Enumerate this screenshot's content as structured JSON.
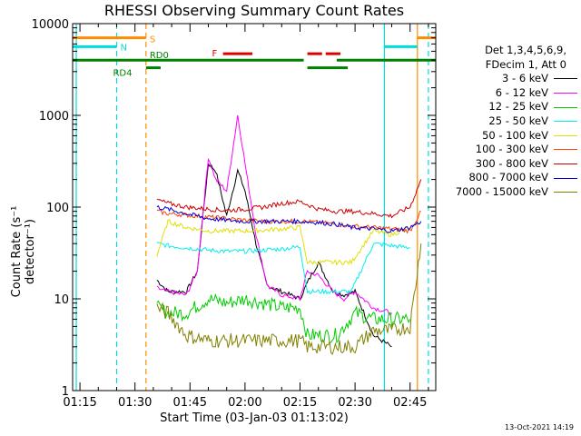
{
  "chart_data": {
    "type": "line",
    "title": "RHESSI Observing Summary Count Rates",
    "xlabel": "Start Time (03-Jan-03 01:13:02)",
    "ylabel": "Count Rate (s⁻¹ detector⁻¹)",
    "yscale": "log",
    "ylim": [
      1,
      10000
    ],
    "xlim": [
      "01:13",
      "02:52"
    ],
    "x_ticks": [
      "01:15",
      "01:30",
      "01:45",
      "02:00",
      "02:15",
      "02:30",
      "02:45"
    ],
    "y_ticks": [
      "1",
      "10",
      "100",
      "1000",
      "10000"
    ],
    "legend_title": [
      "Det 1,3,4,5,6,9,",
      "FDecim 1, Att 0"
    ],
    "timestamp": "13-Oct-2021 14:19",
    "series": [
      {
        "name": "3 - 6 keV",
        "color": "#000000",
        "x": [
          "01:36",
          "01:39",
          "01:44",
          "01:47",
          "01:50",
          "01:52",
          "01:55",
          "01:58",
          "02:00",
          "02:03",
          "02:06",
          "02:10",
          "02:15",
          "02:17",
          "02:20",
          "02:24",
          "02:27",
          "02:30",
          "02:35",
          "02:40"
        ],
        "y": [
          16,
          12,
          12,
          20,
          300,
          250,
          80,
          250,
          150,
          40,
          14,
          12,
          10,
          15,
          25,
          12,
          11,
          12,
          4,
          3
        ]
      },
      {
        "name": "6 - 12 keV",
        "color": "#ff00ff",
        "x": [
          "01:36",
          "01:39",
          "01:44",
          "01:47",
          "01:50",
          "01:52",
          "01:55",
          "01:58",
          "02:00",
          "02:03",
          "02:06",
          "02:10",
          "02:15",
          "02:17",
          "02:20",
          "02:24",
          "02:27",
          "02:30",
          "02:35",
          "02:40"
        ],
        "y": [
          13,
          12,
          11,
          20,
          350,
          200,
          150,
          1000,
          300,
          50,
          14,
          11,
          10,
          20,
          18,
          12,
          10,
          12,
          8,
          7
        ]
      },
      {
        "name": "12 - 25 keV",
        "color": "#00cc00",
        "x": [
          "01:36",
          "01:39",
          "01:44",
          "01:50",
          "01:55",
          "02:00",
          "02:05",
          "02:10",
          "02:15",
          "02:17",
          "02:20",
          "02:25",
          "02:30",
          "02:35",
          "02:40",
          "02:45"
        ],
        "y": [
          8,
          7,
          7,
          10,
          9,
          10,
          9,
          8,
          8,
          4,
          4,
          4,
          7,
          6,
          6,
          6
        ]
      },
      {
        "name": "25 - 50 keV",
        "color": "#00eeee",
        "x": [
          "01:36",
          "01:39",
          "01:44",
          "01:50",
          "01:55",
          "02:00",
          "02:05",
          "02:10",
          "02:15",
          "02:17",
          "02:20",
          "02:25",
          "02:29",
          "02:35",
          "02:40",
          "02:45"
        ],
        "y": [
          40,
          38,
          36,
          34,
          33,
          33,
          34,
          35,
          37,
          12,
          12,
          12,
          12,
          40,
          38,
          36
        ]
      },
      {
        "name": "50 - 100 keV",
        "color": "#e0e000",
        "x": [
          "01:36",
          "01:39",
          "01:44",
          "01:50",
          "01:55",
          "02:00",
          "02:05",
          "02:10",
          "02:15",
          "02:17",
          "02:20",
          "02:25",
          "02:29",
          "02:35",
          "02:40",
          "02:45"
        ],
        "y": [
          30,
          70,
          60,
          55,
          55,
          55,
          56,
          58,
          60,
          25,
          25,
          25,
          25,
          55,
          50,
          60
        ]
      },
      {
        "name": "100 - 300 keV",
        "color": "#ff4500",
        "x": [
          "01:36",
          "01:39",
          "01:44",
          "01:50",
          "01:55",
          "02:00",
          "02:05",
          "02:10",
          "02:15",
          "02:20",
          "02:25",
          "02:29",
          "02:35",
          "02:40",
          "02:45",
          "02:48"
        ],
        "y": [
          90,
          85,
          82,
          78,
          75,
          72,
          70,
          70,
          70,
          68,
          65,
          62,
          60,
          58,
          55,
          90
        ]
      },
      {
        "name": "300 - 800 keV",
        "color": "#cc0000",
        "x": [
          "01:36",
          "01:39",
          "01:44",
          "01:50",
          "01:55",
          "02:00",
          "02:05",
          "02:10",
          "02:15",
          "02:20",
          "02:25",
          "02:29",
          "02:35",
          "02:40",
          "02:45",
          "02:48"
        ],
        "y": [
          120,
          110,
          100,
          95,
          92,
          95,
          100,
          110,
          115,
          95,
          90,
          90,
          85,
          80,
          100,
          200
        ]
      },
      {
        "name": "800 - 7000 keV",
        "color": "#0000dd",
        "x": [
          "01:36",
          "01:39",
          "01:44",
          "01:50",
          "01:55",
          "02:00",
          "02:05",
          "02:10",
          "02:15",
          "02:20",
          "02:25",
          "02:29",
          "02:35",
          "02:40",
          "02:45",
          "02:48"
        ],
        "y": [
          100,
          95,
          85,
          75,
          72,
          70,
          70,
          70,
          70,
          68,
          65,
          60,
          58,
          55,
          60,
          70
        ]
      },
      {
        "name": "7000 - 15000 keV",
        "color": "#808000",
        "x": [
          "01:36",
          "01:39",
          "01:44",
          "01:50",
          "01:55",
          "02:00",
          "02:05",
          "02:10",
          "02:15",
          "02:17",
          "02:20",
          "02:25",
          "02:30",
          "02:35",
          "02:40",
          "02:45",
          "02:48"
        ],
        "y": [
          8,
          7,
          4,
          3.5,
          3.5,
          3.5,
          3.5,
          3.5,
          3.5,
          3,
          3,
          3,
          3,
          4.5,
          4.5,
          5,
          40
        ]
      }
    ],
    "flags": [
      {
        "label": "S",
        "color": "#ff8c00",
        "level": 7000,
        "segments": [
          [
            "01:13",
            "01:33"
          ],
          [
            "02:47",
            "02:52"
          ]
        ]
      },
      {
        "label": "N",
        "color": "#00dddd",
        "level": 5600,
        "segments": [
          [
            "01:13",
            "01:25"
          ],
          [
            "02:38",
            "02:47"
          ]
        ]
      },
      {
        "label": "F",
        "color": "#dd0000",
        "level": 4700,
        "segments": [
          [
            "01:54",
            "02:02"
          ],
          [
            "02:17",
            "02:21"
          ],
          [
            "02:22",
            "02:26"
          ]
        ]
      },
      {
        "label": "RD0",
        "color": "#008000",
        "level": 4000,
        "segments": [
          [
            "01:13",
            "02:16"
          ],
          [
            "02:25",
            "02:52"
          ]
        ]
      },
      {
        "label": "RD4",
        "color": "#008000",
        "level": 3300,
        "segments": [
          [
            "01:33",
            "01:37"
          ],
          [
            "02:17",
            "02:28"
          ]
        ]
      }
    ],
    "vlines": [
      {
        "time": "01:14",
        "color": "#00dddd",
        "style": "solid"
      },
      {
        "time": "01:25",
        "color": "#00dddd",
        "style": "dashed"
      },
      {
        "time": "01:33",
        "color": "#ff8c00",
        "style": "dashed"
      },
      {
        "time": "02:38",
        "color": "#00dddd",
        "style": "solid"
      },
      {
        "time": "02:47",
        "color": "#ff8c00",
        "style": "solid"
      },
      {
        "time": "02:50",
        "color": "#00dddd",
        "style": "dashed"
      }
    ]
  }
}
